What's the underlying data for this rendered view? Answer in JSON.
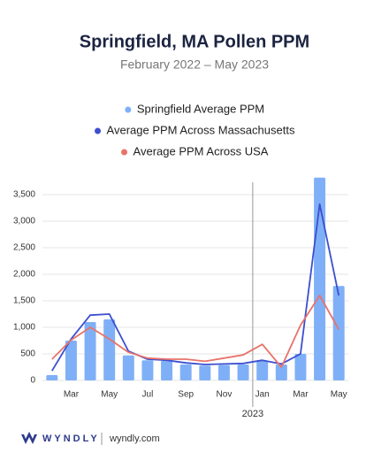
{
  "chart_data": {
    "type": "bar",
    "title": "Springfield, MA Pollen PPM",
    "subtitle": "February 2022 – May 2023",
    "annotation": "2023",
    "categories": [
      null,
      "Mar",
      null,
      "May",
      null,
      "Jul",
      null,
      "Sep",
      null,
      "Nov",
      null,
      "Jan",
      null,
      "Mar",
      null,
      "May"
    ],
    "series": [
      {
        "name": "Springfield Average PPM",
        "color": "#7fb0f7",
        "type": "bar",
        "values": [
          100,
          750,
          1100,
          1150,
          470,
          380,
          370,
          300,
          280,
          290,
          300,
          370,
          300,
          500,
          3820,
          1780
        ]
      },
      {
        "name": "Average PPM Across Massachusetts",
        "color": "#3b4fcf",
        "type": "line",
        "values": [
          180,
          780,
          1230,
          1250,
          550,
          400,
          380,
          330,
          300,
          310,
          320,
          380,
          310,
          500,
          3320,
          1600
        ]
      },
      {
        "name": "Average PPM Across USA",
        "color": "#e8736a",
        "type": "line",
        "values": [
          400,
          760,
          1000,
          780,
          530,
          420,
          400,
          400,
          360,
          420,
          480,
          680,
          250,
          1040,
          1600,
          960
        ]
      }
    ],
    "ylim": [
      0,
      3700
    ],
    "yticks": [
      0,
      500,
      {
        "value": 1000,
        "label": "1,000"
      },
      {
        "value": 1500,
        "label": "1,500"
      },
      {
        "value": 2000,
        "label": "2,000"
      },
      {
        "value": 2500,
        "label": "2,500"
      },
      {
        "value": 3000,
        "label": "3,000"
      },
      {
        "value": 3500,
        "label": "3,500"
      }
    ],
    "grid": true
  },
  "footer": {
    "brand": "WYNDLY",
    "url": "wyndly.com"
  }
}
